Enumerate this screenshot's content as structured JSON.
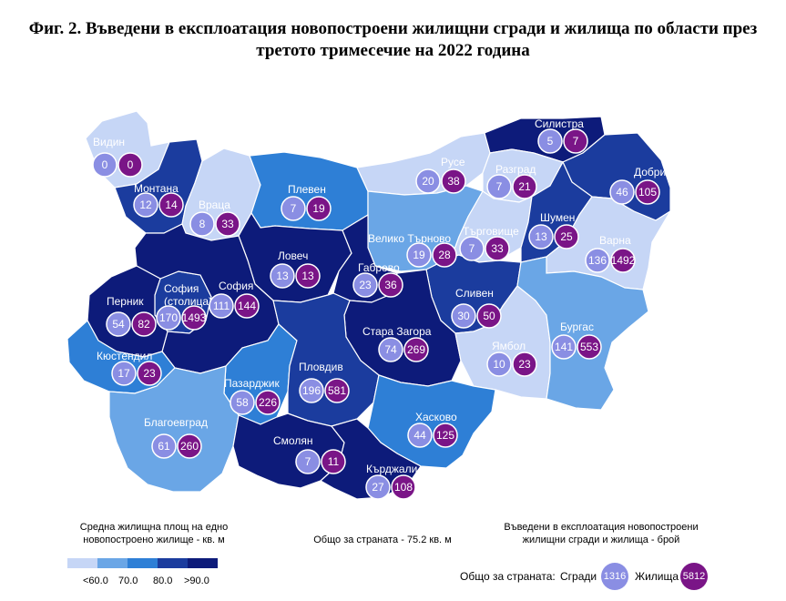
{
  "title": "Фиг. 2. Въведени в експлоатация новопостроени жилищни сгради и жилища по области през третото тримесечие на 2022 година",
  "regions": [
    {
      "id": "vidin",
      "name": "Видин",
      "buildings": 0,
      "dwellings": 0,
      "color": "#c6d6f6"
    },
    {
      "id": "montana",
      "name": "Монтана",
      "buildings": 12,
      "dwellings": 14,
      "color": "#1b3c9e"
    },
    {
      "id": "vratsa",
      "name": "Враца",
      "buildings": 8,
      "dwellings": 33,
      "color": "#c6d6f6"
    },
    {
      "id": "pleven",
      "name": "Плевен",
      "buildings": 7,
      "dwellings": 19,
      "color": "#2e7fd6"
    },
    {
      "id": "ruse",
      "name": "Русе",
      "buildings": 20,
      "dwellings": 38,
      "color": "#c6d6f6"
    },
    {
      "id": "silistra",
      "name": "Силистра",
      "buildings": 5,
      "dwellings": 7,
      "color": "#0d1b7a"
    },
    {
      "id": "razgrad",
      "name": "Разград",
      "buildings": 7,
      "dwellings": 21,
      "color": "#c6d6f6"
    },
    {
      "id": "dobrich",
      "name": "Добрич",
      "buildings": 46,
      "dwellings": 105,
      "color": "#1b3c9e"
    },
    {
      "id": "veliko_tarnovo",
      "name": "Велико Търново",
      "buildings": 19,
      "dwellings": 28,
      "color": "#6aa6e6"
    },
    {
      "id": "targovishte",
      "name": "Търговище",
      "buildings": 7,
      "dwellings": 33,
      "color": "#c6d6f6"
    },
    {
      "id": "shumen",
      "name": "Шумен",
      "buildings": 13,
      "dwellings": 25,
      "color": "#1b3c9e"
    },
    {
      "id": "varna",
      "name": "Варна",
      "buildings": 136,
      "dwellings": 1492,
      "color": "#c6d6f6"
    },
    {
      "id": "lovech",
      "name": "Ловеч",
      "buildings": 13,
      "dwellings": 13,
      "color": "#0d1b7a"
    },
    {
      "id": "gabrovo",
      "name": "Габрово",
      "buildings": 23,
      "dwellings": 36,
      "color": "#0d1b7a"
    },
    {
      "id": "sofia_city",
      "name": "София (столица)",
      "name_line1": "София",
      "name_line2": "(столица)",
      "buildings": 170,
      "dwellings": 1493,
      "color": "#1b3c9e"
    },
    {
      "id": "sofia",
      "name": "София",
      "buildings": 111,
      "dwellings": 144,
      "color": "#0d1b7a"
    },
    {
      "id": "pernik",
      "name": "Перник",
      "buildings": 54,
      "dwellings": 82,
      "color": "#0d1b7a"
    },
    {
      "id": "sliven",
      "name": "Сливен",
      "buildings": 30,
      "dwellings": 50,
      "color": "#1b3c9e"
    },
    {
      "id": "stara_zagora",
      "name": "Стара Загора",
      "buildings": 74,
      "dwellings": 269,
      "color": "#0d1b7a"
    },
    {
      "id": "kyustendil",
      "name": "Кюстендил",
      "buildings": 17,
      "dwellings": 23,
      "color": "#2e7fd6"
    },
    {
      "id": "yambol",
      "name": "Ямбол",
      "buildings": 10,
      "dwellings": 23,
      "color": "#c6d6f6"
    },
    {
      "id": "burgas",
      "name": "Бургас",
      "buildings": 141,
      "dwellings": 553,
      "color": "#6aa6e6"
    },
    {
      "id": "pazardzhik",
      "name": "Пазарджик",
      "buildings": 58,
      "dwellings": 226,
      "color": "#2e7fd6"
    },
    {
      "id": "plovdiv",
      "name": "Пловдив",
      "buildings": 196,
      "dwellings": 581,
      "color": "#1b3c9e"
    },
    {
      "id": "haskovo",
      "name": "Хасково",
      "buildings": 44,
      "dwellings": 125,
      "color": "#2e7fd6"
    },
    {
      "id": "blagoevgrad",
      "name": "Благоевград",
      "buildings": 61,
      "dwellings": 260,
      "color": "#6aa6e6"
    },
    {
      "id": "smolyan",
      "name": "Смолян",
      "buildings": 7,
      "dwellings": 11,
      "color": "#0d1b7a"
    },
    {
      "id": "kardzhali",
      "name": "Кърджали",
      "buildings": 27,
      "dwellings": 108,
      "color": "#0d1b7a"
    }
  ],
  "legend": {
    "title_line1": "Средна жилищна площ на едно",
    "title_line2": "новопостроено жилище - кв. м",
    "colors": [
      "#c6d6f6",
      "#6aa6e6",
      "#2e7fd6",
      "#1b3c9e",
      "#0d1b7a"
    ],
    "ticks": [
      "<60.0",
      "70.0",
      "80.0",
      ">90.0"
    ]
  },
  "country_average": "Общо за страната - 75.2 кв. м",
  "right_legend": {
    "title_line1": "Въведени в експлоатация новопостроени",
    "title_line2": "жилищни сгради и жилища - брой",
    "totals_label": "Общо за страната:",
    "buildings_label": "Сгради",
    "buildings_total": "1316",
    "dwellings_label": "Жилища",
    "dwellings_total": "5812",
    "buildings_color": "#8a8ee3",
    "dwellings_color": "#7a1587"
  }
}
